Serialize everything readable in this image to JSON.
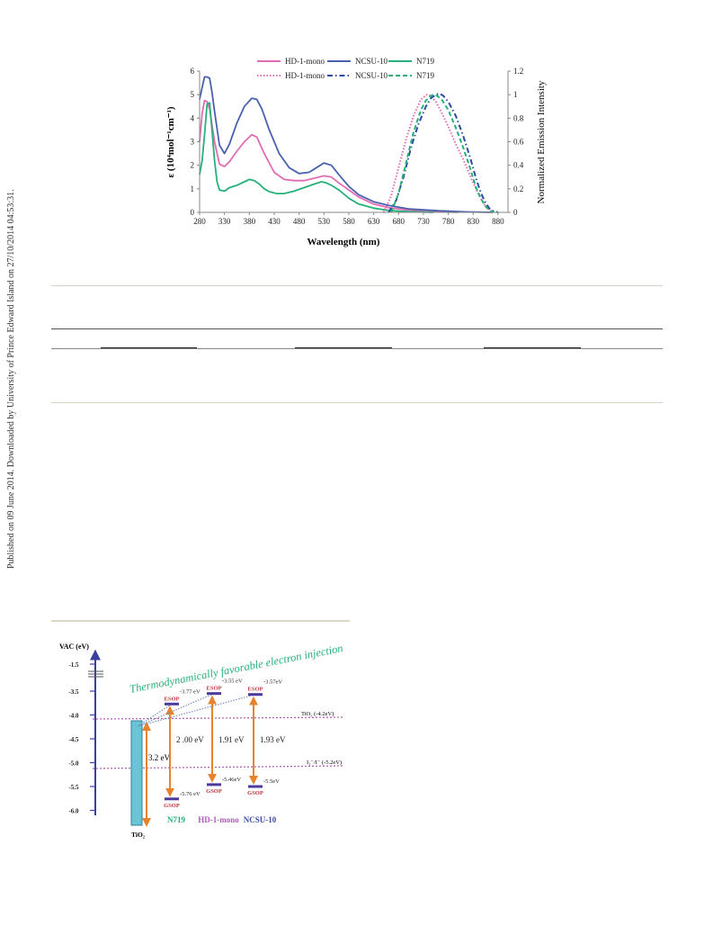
{
  "sidebar": {
    "text": "Published on 09 June 2014. Downloaded by University of Prince Edward Island on 27/10/2014 04:53:31."
  },
  "chart_data": [
    {
      "type": "line",
      "title": "",
      "xlabel": "Wavelength (nm)",
      "ylabel": "ε (10⁴mol⁻¹cm⁻¹)",
      "y2label": "Normalized Emission Intensity",
      "xlim": [
        280,
        900
      ],
      "ylim": [
        0,
        6
      ],
      "y2lim": [
        0,
        1.2
      ],
      "x_ticks": [
        "280",
        "330",
        "380",
        "430",
        "480",
        "530",
        "580",
        "630",
        "680",
        "730",
        "780",
        "830",
        "880"
      ],
      "y_ticks": [
        "0",
        "1",
        "2",
        "3",
        "4",
        "5",
        "6"
      ],
      "y2_ticks": [
        "0",
        "0.2",
        "0.4",
        "0.6",
        "0.8",
        "1",
        "1.2"
      ],
      "legend_position": "top",
      "colors": {
        "hd": "#e06db2",
        "ncsu": "#4a62ae",
        "n719": "#27b07a"
      },
      "series": [
        {
          "name": "HD-1-mono",
          "kind": "absorption",
          "axis": "left",
          "color": "#e06db2",
          "dash": "solid",
          "x": [
            280,
            285,
            290,
            295,
            300,
            310,
            320,
            330,
            340,
            355,
            370,
            385,
            395,
            410,
            430,
            450,
            470,
            490,
            510,
            530,
            545,
            560,
            580,
            600,
            630,
            660,
            700,
            760,
            800
          ],
          "values": [
            3.0,
            4.2,
            4.75,
            4.7,
            4.4,
            3.0,
            2.05,
            1.95,
            2.15,
            2.6,
            3.0,
            3.3,
            3.2,
            2.5,
            1.7,
            1.4,
            1.35,
            1.35,
            1.45,
            1.55,
            1.5,
            1.25,
            0.95,
            0.65,
            0.35,
            0.2,
            0.1,
            0.03,
            0.0
          ]
        },
        {
          "name": "NCSU-10",
          "kind": "absorption",
          "axis": "left",
          "color": "#4a62ae",
          "dash": "solid",
          "x": [
            280,
            285,
            290,
            295,
            300,
            305,
            310,
            320,
            330,
            340,
            355,
            370,
            385,
            395,
            405,
            420,
            440,
            460,
            480,
            500,
            515,
            530,
            545,
            560,
            580,
            600,
            630,
            660,
            700,
            760,
            820,
            870
          ],
          "values": [
            4.8,
            5.3,
            5.75,
            5.75,
            5.7,
            5.1,
            4.3,
            2.85,
            2.5,
            2.9,
            3.8,
            4.5,
            4.85,
            4.8,
            4.4,
            3.5,
            2.5,
            1.9,
            1.65,
            1.7,
            1.9,
            2.1,
            2.0,
            1.6,
            1.1,
            0.75,
            0.45,
            0.3,
            0.15,
            0.07,
            0.02,
            0.0
          ]
        },
        {
          "name": "N719",
          "kind": "absorption",
          "axis": "left",
          "color": "#27b07a",
          "dash": "solid",
          "x": [
            280,
            285,
            290,
            295,
            300,
            305,
            310,
            315,
            320,
            330,
            340,
            355,
            370,
            380,
            390,
            400,
            410,
            420,
            435,
            450,
            470,
            490,
            510,
            525,
            535,
            545,
            560,
            580,
            600,
            630,
            660,
            700,
            750
          ],
          "values": [
            1.6,
            2.2,
            3.3,
            4.6,
            4.65,
            3.5,
            2.2,
            1.3,
            0.95,
            0.9,
            1.05,
            1.15,
            1.3,
            1.4,
            1.35,
            1.2,
            1.0,
            0.88,
            0.8,
            0.8,
            0.9,
            1.05,
            1.2,
            1.3,
            1.25,
            1.15,
            0.95,
            0.6,
            0.35,
            0.18,
            0.08,
            0.03,
            0.0
          ]
        },
        {
          "name": "HD-1-mono",
          "kind": "emission",
          "axis": "right",
          "color": "#e06db2",
          "dash": "dotted",
          "x": [
            650,
            665,
            680,
            695,
            710,
            725,
            737,
            745,
            755,
            765,
            780,
            795,
            810,
            825,
            840,
            855,
            870
          ],
          "values": [
            0.0,
            0.14,
            0.38,
            0.62,
            0.82,
            0.96,
            1.0,
            0.99,
            0.94,
            0.86,
            0.73,
            0.58,
            0.45,
            0.3,
            0.16,
            0.05,
            0.0
          ]
        },
        {
          "name": "NCSU-10",
          "kind": "emission",
          "axis": "right",
          "color": "#2d4ca0",
          "dash": "dashdot",
          "x": [
            660,
            675,
            690,
            705,
            720,
            735,
            745,
            755,
            762,
            770,
            780,
            795,
            810,
            825,
            835,
            845,
            855,
            865,
            880
          ],
          "values": [
            0.0,
            0.1,
            0.3,
            0.55,
            0.75,
            0.9,
            0.97,
            1.0,
            1.01,
            0.99,
            0.94,
            0.82,
            0.65,
            0.45,
            0.3,
            0.17,
            0.08,
            0.02,
            0.0
          ]
        },
        {
          "name": "N719",
          "kind": "emission",
          "axis": "right",
          "color": "#27b07a",
          "dash": "dashed",
          "x": [
            665,
            680,
            695,
            710,
            725,
            735,
            745,
            750,
            758,
            768,
            780,
            795,
            810,
            825,
            835,
            845,
            855,
            865,
            880
          ],
          "values": [
            0.0,
            0.16,
            0.42,
            0.68,
            0.87,
            0.95,
            0.99,
            1.0,
            0.99,
            0.95,
            0.87,
            0.72,
            0.55,
            0.36,
            0.22,
            0.12,
            0.05,
            0.01,
            0.0
          ]
        }
      ],
      "legend": [
        {
          "label": "HD-1-mono",
          "color": "#e06db2",
          "dash": "solid"
        },
        {
          "label": "NCSU-10",
          "color": "#4a62ae",
          "dash": "solid"
        },
        {
          "label": "N719",
          "color": "#27b07a",
          "dash": "solid"
        },
        {
          "label": "HD-1-mono",
          "color": "#e06db2",
          "dash": "dotted"
        },
        {
          "label": "NCSU-10",
          "color": "#2d4ca0",
          "dash": "dashdot"
        },
        {
          "label": "N719",
          "color": "#27b07a",
          "dash": "dashed"
        }
      ]
    },
    {
      "type": "diagram",
      "title": "",
      "axis_label": "VAC (eV)",
      "y_ticks": [
        "-1.5",
        "-3.5",
        "-4.0",
        "-4.5",
        "-5.0",
        "-5.5",
        "-6.0"
      ],
      "banner": "Thermodynamically favorable electron injection",
      "tio2": {
        "label": "TiO₂",
        "band_label": "3.2 eV",
        "cb_label": "TiO₂ (-4.2eV)",
        "cb_level": -4.2
      },
      "redox": {
        "label": "I₃⁻/I⁻ (-5.2eV)",
        "level": -5.2
      },
      "dyes": [
        {
          "name": "N719",
          "color": "#27b07a",
          "esop_label": "ESOP",
          "esop_value": "-3.77 eV",
          "esop": -3.77,
          "gsop_label": "GSOP",
          "gsop_value": "-5.76 eV",
          "gsop": -5.76,
          "gap": "2 .00 eV"
        },
        {
          "name": "HD-1-mono",
          "color": "#b05ab8",
          "esop_label": "ESOP",
          "esop_value": "-3.55 eV",
          "esop": -3.55,
          "gsop_label": "GSOP",
          "gsop_value": "-5.46eV",
          "gsop": -5.46,
          "gap": "1.91 eV"
        },
        {
          "name": "NCSU-10",
          "color": "#3f4da8",
          "esop_label": "ESOP",
          "esop_value": "-3.57eV",
          "esop": -3.57,
          "gsop_label": "GSOP",
          "gsop_value": "-5.5eV",
          "gsop": -5.5,
          "gap": "1.93 eV"
        }
      ]
    }
  ]
}
